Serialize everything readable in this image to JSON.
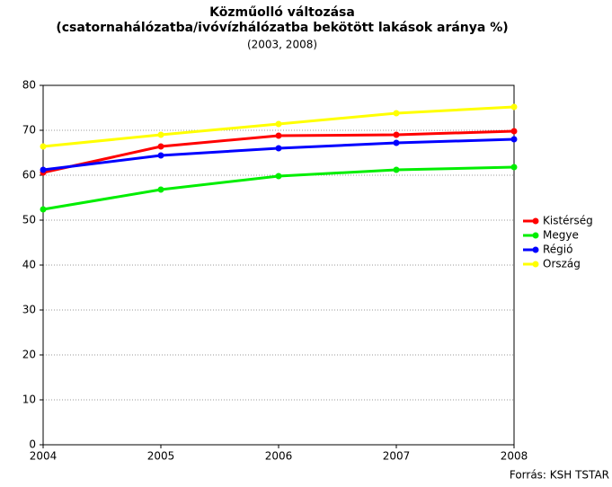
{
  "chart_data": {
    "type": "line",
    "title": [
      "Közműolló változása",
      "(csatornahálózatba/ivóvízhálózatba bekötött lakások aránya %)"
    ],
    "subtitle": "(2003, 2008)",
    "source": "Forrás: KSH TSTAR",
    "x": [
      2004,
      2005,
      2006,
      2007,
      2008
    ],
    "xlim": [
      2004,
      2008
    ],
    "xticks": [
      2004,
      2005,
      2006,
      2007,
      2008
    ],
    "ylim": [
      0,
      80
    ],
    "yticks": [
      0,
      10,
      20,
      30,
      40,
      50,
      60,
      70,
      80
    ],
    "grid": true,
    "legend": "right",
    "series": [
      {
        "name": "Kistérség",
        "color": "#ff0000",
        "values": [
          60.6,
          66.4,
          68.8,
          69.0,
          69.8
        ]
      },
      {
        "name": "Megye",
        "color": "#00ee00",
        "values": [
          52.4,
          56.8,
          59.8,
          61.2,
          61.8
        ]
      },
      {
        "name": "Régió",
        "color": "#0000ff",
        "values": [
          61.2,
          64.4,
          66.0,
          67.2,
          68.0
        ]
      },
      {
        "name": "Ország",
        "color": "#ffff00",
        "values": [
          66.4,
          69.0,
          71.4,
          73.8,
          75.2
        ]
      }
    ]
  }
}
